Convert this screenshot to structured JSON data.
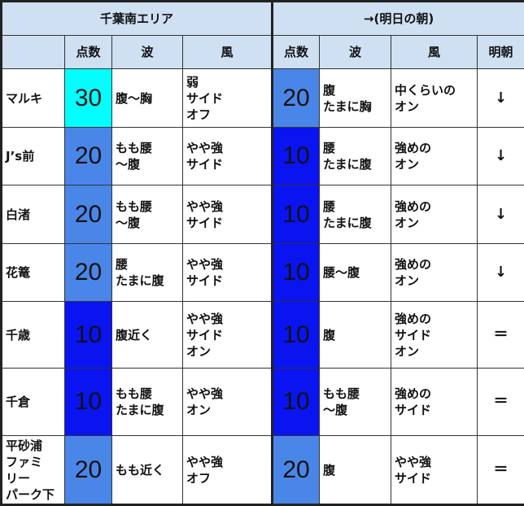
{
  "header": {
    "area": "千葉南エリア",
    "tomorrow": "→(明日の朝)",
    "cols": [
      "",
      "点数",
      "波",
      "風"
    ],
    "cols2": [
      "点数",
      "波",
      "風",
      "明朝"
    ]
  },
  "score_colors": {
    "30": "#00ffff",
    "20": "#4a86e8",
    "10": "#0a14f0"
  },
  "rows": [
    {
      "name": "マルキ",
      "score": "30",
      "wave": "腹～胸",
      "wind": "弱\nサイド\nオフ",
      "score2": "20",
      "wave2": "腹\nたまに胸",
      "wind2": "中くらいの\nオン",
      "trend": "↓"
    },
    {
      "name": "J’s前",
      "score": "20",
      "wave": "もも腰\n～腹",
      "wind": "やや強\nサイド",
      "score2": "10",
      "wave2": "腰\nたまに腹",
      "wind2": "強めの\nオン",
      "trend": "↓"
    },
    {
      "name": "白渚",
      "score": "20",
      "wave": "もも腰\n～腹",
      "wind": "やや強\nサイド",
      "score2": "10",
      "wave2": "腰\nたまに腹",
      "wind2": "強めの\nオン",
      "trend": "↓"
    },
    {
      "name": "花篭",
      "score": "20",
      "wave": "腰\nたまに腹",
      "wind": "やや強\nサイド",
      "score2": "10",
      "wave2": "腰～腹",
      "wind2": "強めの\nオン",
      "trend": "↓"
    },
    {
      "name": "千歳",
      "score": "10",
      "wave": "腹近く",
      "wind": "やや強\nサイド\nオン",
      "score2": "10",
      "wave2": "腹",
      "wind2": "強めの\nサイド\nオン",
      "trend": "＝"
    },
    {
      "name": "千倉",
      "score": "10",
      "wave": "もも腰\nたまに腹",
      "wind": "やや強\nオン",
      "score2": "10",
      "wave2": "もも腰\n～腹",
      "wind2": "強めの\nサイド",
      "trend": "＝"
    },
    {
      "name": "平砂浦\nファミ\nリー\nパーク下",
      "score": "20",
      "wave": "もも近く",
      "wind": "やや強\nオフ",
      "score2": "20",
      "wave2": "腹",
      "wind2": "やや強\nサイド",
      "trend": "＝"
    }
  ]
}
